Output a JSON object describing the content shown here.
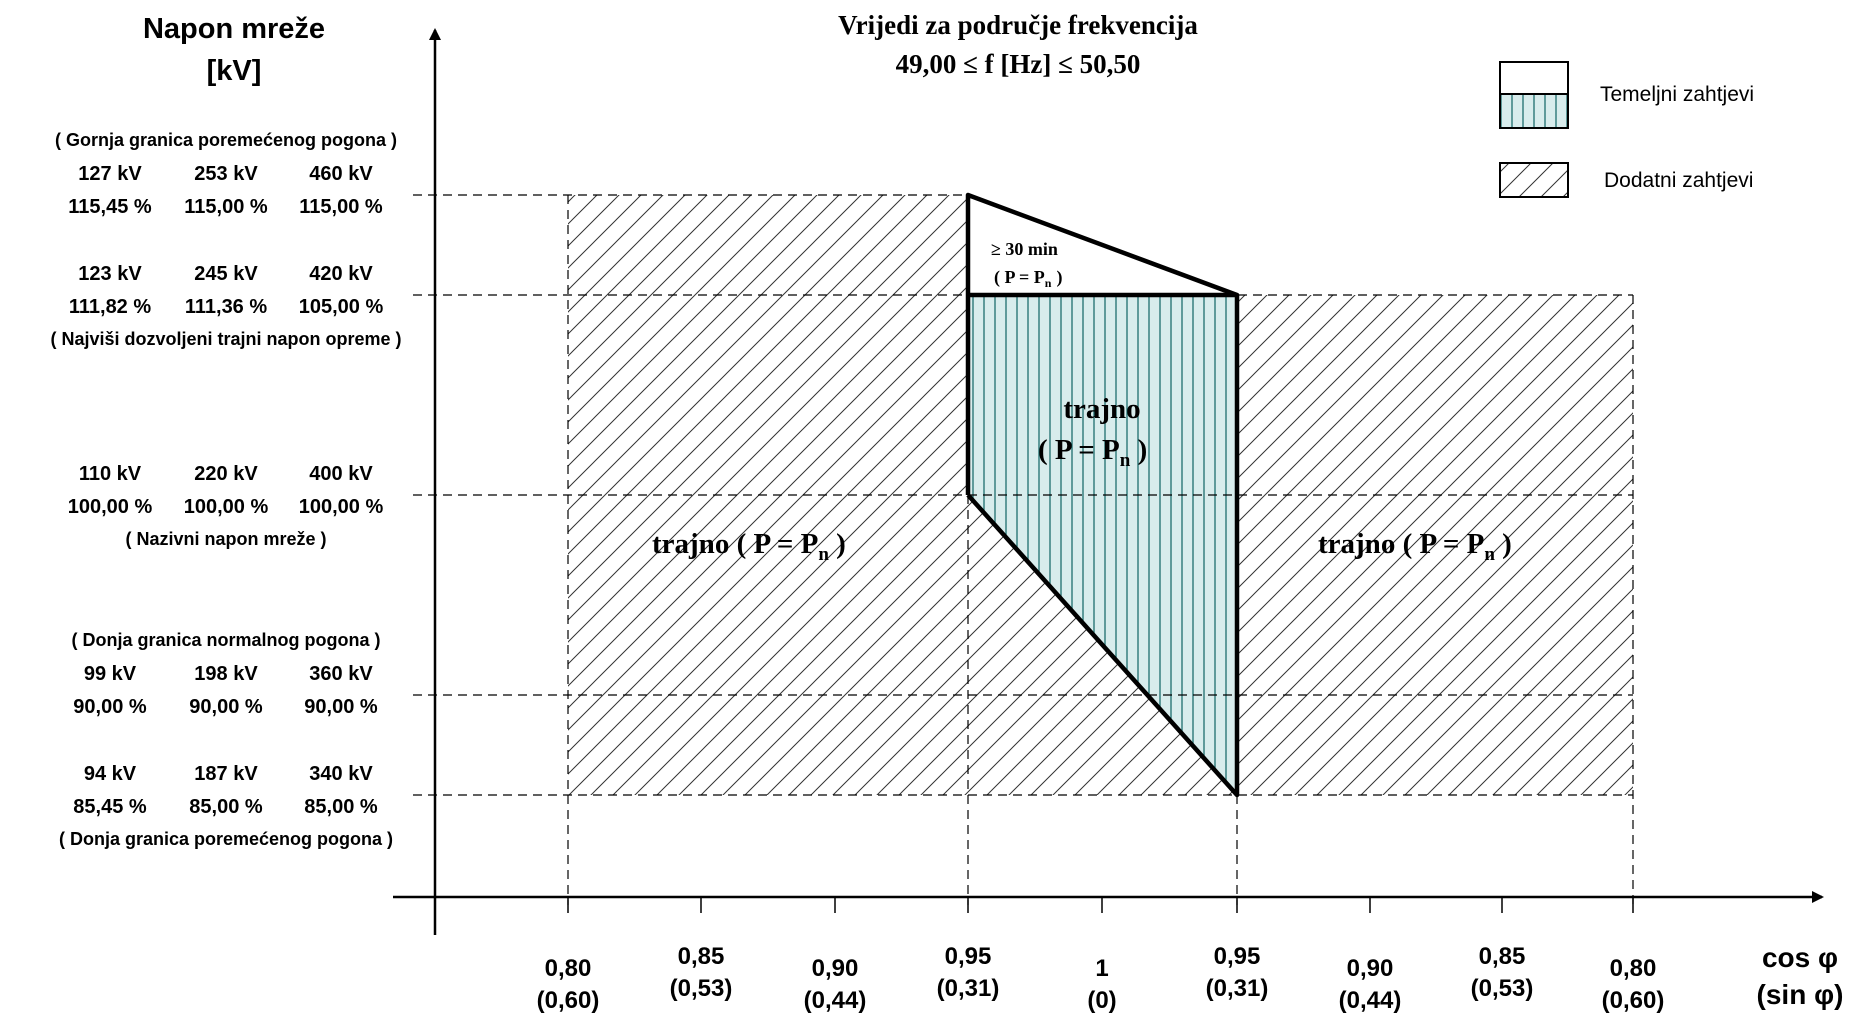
{
  "title": {
    "line1": "Vrijedi za područje frekvencija",
    "line2": "49,00 ≤ f [Hz] ≤ 50,50"
  },
  "y_axis": {
    "title_line1": "Napon mreže",
    "title_line2": "[kV]",
    "groups": [
      {
        "note_above": "( Gornja granica poremećenog pogona )",
        "note_below": "",
        "kv": [
          "127 kV",
          "253 kV",
          "460 kV"
        ],
        "pct": [
          "115,45 %",
          "115,00 %",
          "115,00 %"
        ]
      },
      {
        "note_above": "",
        "note_below": "( Najviši dozvoljeni trajni napon opreme )",
        "kv": [
          "123 kV",
          "245 kV",
          "420 kV"
        ],
        "pct": [
          "111,82 %",
          "111,36 %",
          "105,00 %"
        ]
      },
      {
        "note_above": "",
        "note_below": "( Nazivni napon mreže )",
        "kv": [
          "110 kV",
          "220 kV",
          "400 kV"
        ],
        "pct": [
          "100,00 %",
          "100,00 %",
          "100,00 %"
        ]
      },
      {
        "note_above": "( Donja granica normalnog pogona )",
        "note_below": "",
        "kv": [
          "99 kV",
          "198 kV",
          "360 kV"
        ],
        "pct": [
          "90,00 %",
          "90,00 %",
          "90,00 %"
        ]
      },
      {
        "note_above": "",
        "note_below": "( Donja granica poremećenog pogona )",
        "kv": [
          "94 kV",
          "187 kV",
          "340 kV"
        ],
        "pct": [
          "85,45 %",
          "85,00 %",
          "85,00 %"
        ]
      }
    ]
  },
  "x_axis": {
    "title_line1": "cos φ",
    "title_line2": "(sin φ)",
    "ticks": [
      {
        "cos": "0,80",
        "sin": "(0,60)"
      },
      {
        "cos": "0,85",
        "sin": "(0,53)"
      },
      {
        "cos": "0,90",
        "sin": "(0,44)"
      },
      {
        "cos": "0,95",
        "sin": "(0,31)"
      },
      {
        "cos": "1",
        "sin": "(0)"
      },
      {
        "cos": "0,95",
        "sin": "(0,31)"
      },
      {
        "cos": "0,90",
        "sin": "(0,44)"
      },
      {
        "cos": "0,85",
        "sin": "(0,53)"
      },
      {
        "cos": "0,80",
        "sin": "(0,60)"
      }
    ]
  },
  "legend": {
    "basic_label": "Temeljni zahtjevi",
    "additional_label": "Dodatni zahtjevi"
  },
  "regions": {
    "left_label": "trajno  ( P = P",
    "right_label": "trajno  ( P = P",
    "center_label_line1": "trajno",
    "center_label_line2": "( P = P",
    "top_label_line1": "≥ 30 min",
    "top_label_line2": "( P = P",
    "subscript": "n",
    "close_paren": " )",
    "close_paren_short": ")"
  },
  "colors": {
    "basic_fill": "#d8ecec",
    "basic_hatch": "#1e6e6e"
  }
}
